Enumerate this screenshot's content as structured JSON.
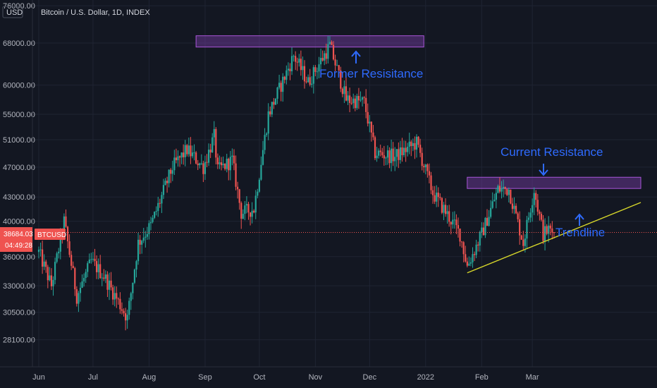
{
  "header": {
    "title": "Bitcoin / U.S. Dollar, 1D, INDEX",
    "currency": "USD"
  },
  "colors": {
    "background": "#131722",
    "grid": "#1f2433",
    "up": "#26a69a",
    "down": "#ef5350",
    "zone": "#7b3fa8",
    "trendline": "#d6d62a",
    "annotation": "#2f6bff",
    "price_line": "#ef5350"
  },
  "price_badge": {
    "value": "38684.03",
    "countdown": "04:49:28",
    "ticker": "BTCUSD"
  },
  "chart_data": {
    "type": "candlestick",
    "y_axis": {
      "scale": "log",
      "ticks": [
        76000,
        68000,
        60000,
        55000,
        51000,
        47000,
        43000,
        40000,
        36000,
        33000,
        30500,
        28100
      ],
      "tick_labels": [
        "76000.00",
        "68000.00",
        "60000.00",
        "55000.00",
        "51000.00",
        "47000.00",
        "43000.00",
        "40000.00",
        "36000.00",
        "33000.00",
        "30500.00",
        "28100.00"
      ],
      "range": [
        26700,
        76500
      ]
    },
    "x_axis": {
      "range": [
        "2021-06-01",
        "2022-04-30"
      ],
      "ticks": [
        {
          "label": "Jun",
          "date": "2021-06-01"
        },
        {
          "label": "Jul",
          "date": "2021-07-01"
        },
        {
          "label": "Aug",
          "date": "2021-08-01"
        },
        {
          "label": "Sep",
          "date": "2021-09-01"
        },
        {
          "label": "Oct",
          "date": "2021-10-01"
        },
        {
          "label": "Nov",
          "date": "2021-11-01"
        },
        {
          "label": "Dec",
          "date": "2021-12-01"
        },
        {
          "label": "2022",
          "date": "2022-01-01"
        },
        {
          "label": "Feb",
          "date": "2022-02-01"
        },
        {
          "label": "Mar",
          "date": "2022-03-01"
        }
      ]
    },
    "last_price": 38684.03,
    "anchors": [
      [
        "2021-06-01",
        36500
      ],
      [
        "2021-06-08",
        33000
      ],
      [
        "2021-06-15",
        40000
      ],
      [
        "2021-06-22",
        32000
      ],
      [
        "2021-06-30",
        35500
      ],
      [
        "2021-07-07",
        34000
      ],
      [
        "2021-07-20",
        30000
      ],
      [
        "2021-07-26",
        37500
      ],
      [
        "2021-08-02",
        39500
      ],
      [
        "2021-08-14",
        47000
      ],
      [
        "2021-08-22",
        49500
      ],
      [
        "2021-08-31",
        47000
      ],
      [
        "2021-09-06",
        51500
      ],
      [
        "2021-09-08",
        46500
      ],
      [
        "2021-09-16",
        48000
      ],
      [
        "2021-09-21",
        41000
      ],
      [
        "2021-09-28",
        41500
      ],
      [
        "2021-10-06",
        55000
      ],
      [
        "2021-10-15",
        61500
      ],
      [
        "2021-10-20",
        65500
      ],
      [
        "2021-10-28",
        60500
      ],
      [
        "2021-11-09",
        67500
      ],
      [
        "2021-11-18",
        57500
      ],
      [
        "2021-11-28",
        57000
      ],
      [
        "2021-12-04",
        49000
      ],
      [
        "2021-12-15",
        48500
      ],
      [
        "2021-12-27",
        50500
      ],
      [
        "2022-01-05",
        43500
      ],
      [
        "2022-01-10",
        41800
      ],
      [
        "2022-01-20",
        38500
      ],
      [
        "2022-01-24",
        35000
      ],
      [
        "2022-02-01",
        38500
      ],
      [
        "2022-02-10",
        44000
      ],
      [
        "2022-02-16",
        44000
      ],
      [
        "2022-02-24",
        37500
      ],
      [
        "2022-03-02",
        44000
      ],
      [
        "2022-03-07",
        38500
      ],
      [
        "2022-03-10",
        39000
      ],
      [
        "2022-03-13",
        38684
      ]
    ],
    "zones": [
      {
        "label": "Former Resisitance",
        "from": "2021-08-27",
        "to": "2021-12-31",
        "low": 67200,
        "high": 69500
      },
      {
        "label": "Current Resistance",
        "from": "2022-01-24",
        "to": "2022-04-30",
        "low": 44100,
        "high": 45600
      }
    ],
    "trendline": {
      "label": "Trendline",
      "from": [
        "2022-01-24",
        34300
      ],
      "to": [
        "2022-04-30",
        42300
      ]
    },
    "annotations": [
      {
        "text": "Former Resisitance",
        "arrow": "up"
      },
      {
        "text": "Current Resistance",
        "arrow": "down"
      },
      {
        "text": "Trendline",
        "arrow": "up"
      }
    ]
  }
}
